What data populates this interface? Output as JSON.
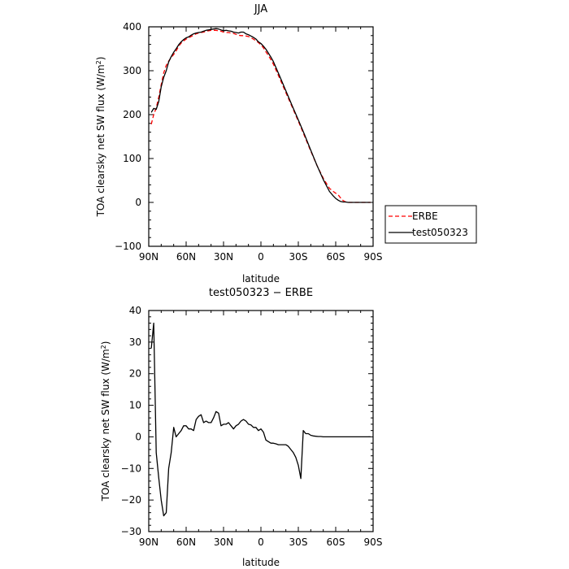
{
  "chart_data": [
    {
      "type": "line",
      "title": "JJA",
      "xlabel": "latitude",
      "ylabel": "TOA clearsky net SW flux (W/m²)",
      "xlim": [
        90,
        -90
      ],
      "ylim": [
        -100,
        400
      ],
      "x_ticks": [
        "90N",
        "60N",
        "30N",
        "0",
        "30S",
        "60S",
        "90S"
      ],
      "x_tick_values": [
        90,
        60,
        30,
        0,
        -30,
        -60,
        -90
      ],
      "y_ticks": [
        "−100",
        "0",
        "100",
        "200",
        "300",
        "400"
      ],
      "y_tick_values": [
        -100,
        0,
        100,
        200,
        300,
        400
      ],
      "legend": "right-bottom outside",
      "series": [
        {
          "name": "ERBE",
          "color": "#ff0000",
          "dashed": true,
          "x": [
            88,
            86,
            84,
            82,
            80,
            78,
            76,
            74,
            72,
            70,
            68,
            66,
            64,
            62,
            60,
            58,
            56,
            54,
            52,
            50,
            48,
            46,
            44,
            42,
            40,
            38,
            36,
            34,
            32,
            30,
            28,
            26,
            24,
            22,
            20,
            18,
            16,
            14,
            12,
            10,
            8,
            6,
            4,
            2,
            0,
            -2,
            -4,
            -6,
            -8,
            -10,
            -15,
            -20,
            -25,
            -30,
            -35,
            -40,
            -45,
            -50,
            -55,
            -58,
            -60,
            -62,
            -64,
            -66,
            -68,
            -70,
            -72,
            -74,
            -76,
            -78,
            -80,
            -85,
            -88
          ],
          "y": [
            178,
            200,
            215,
            240,
            268,
            295,
            312,
            322,
            330,
            337,
            345,
            356,
            363,
            368,
            372,
            375,
            378,
            381,
            384,
            386,
            387,
            388,
            390,
            391,
            392,
            392,
            392,
            391,
            390,
            388,
            387,
            387,
            386,
            385,
            383,
            381,
            380,
            380,
            379,
            378,
            375,
            372,
            368,
            364,
            359,
            352,
            343,
            335,
            325,
            315,
            283,
            250,
            218,
            185,
            151,
            117,
            84,
            55,
            32,
            25,
            21,
            17,
            10,
            4,
            1,
            0,
            0,
            0,
            0,
            0,
            0,
            0,
            0
          ]
        },
        {
          "name": "test050323",
          "color": "#000000",
          "dashed": false,
          "x": [
            88,
            86,
            84,
            82,
            80,
            78,
            76,
            74,
            72,
            70,
            68,
            66,
            64,
            62,
            60,
            58,
            56,
            54,
            52,
            50,
            48,
            46,
            44,
            42,
            40,
            38,
            36,
            34,
            32,
            30,
            28,
            26,
            24,
            22,
            20,
            18,
            16,
            14,
            12,
            10,
            8,
            6,
            4,
            2,
            0,
            -2,
            -4,
            -6,
            -8,
            -10,
            -15,
            -20,
            -25,
            -30,
            -35,
            -40,
            -45,
            -50,
            -55,
            -58,
            -60,
            -62,
            -64,
            -66,
            -68,
            -70,
            -72,
            -74,
            -76,
            -78,
            -80,
            -85,
            -88
          ],
          "y": [
            205,
            214,
            212,
            230,
            263,
            285,
            300,
            320,
            332,
            342,
            350,
            359,
            366,
            371,
            375,
            377,
            381,
            384,
            386,
            387,
            388,
            390,
            392,
            393,
            394,
            395,
            396,
            395,
            393,
            391,
            392,
            391,
            390,
            388,
            387,
            386,
            388,
            388,
            384,
            382,
            379,
            376,
            372,
            366,
            362,
            356,
            349,
            340,
            331,
            321,
            288,
            254,
            221,
            188,
            154,
            119,
            84,
            52,
            25,
            15,
            9,
            5,
            2,
            1,
            1,
            0,
            0,
            0,
            0,
            0,
            0,
            0,
            0
          ]
        }
      ]
    },
    {
      "type": "line",
      "title": "test050323 − ERBE",
      "xlabel": "latitude",
      "ylabel": "TOA clearsky net SW flux (W/m²)",
      "xlim": [
        90,
        -90
      ],
      "ylim": [
        -30,
        40
      ],
      "x_ticks": [
        "90N",
        "60N",
        "30N",
        "0",
        "30S",
        "60S",
        "90S"
      ],
      "x_tick_values": [
        90,
        60,
        30,
        0,
        -30,
        -60,
        -90
      ],
      "y_ticks": [
        "−30",
        "−20",
        "−10",
        "0",
        "10",
        "20",
        "30",
        "40"
      ],
      "y_tick_values": [
        -30,
        -20,
        -10,
        0,
        10,
        20,
        30,
        40
      ],
      "series": [
        {
          "name": "",
          "color": "#000000",
          "dashed": false,
          "x": [
            88,
            86,
            84,
            82,
            80,
            78,
            76,
            74,
            72,
            70,
            68,
            66,
            64,
            62,
            60,
            58,
            56,
            54,
            52,
            50,
            48,
            46,
            44,
            42,
            40,
            38,
            36,
            34,
            32,
            30,
            28,
            26,
            24,
            22,
            20,
            18,
            16,
            14,
            12,
            10,
            8,
            6,
            4,
            2,
            0,
            -2,
            -4,
            -6,
            -8,
            -10,
            -12,
            -14,
            -16,
            -18,
            -20,
            -22,
            -24,
            -26,
            -28,
            -30,
            -32,
            -34,
            -36,
            -38,
            -40,
            -42,
            -44,
            -46,
            -48,
            -50,
            -52,
            -54,
            -56,
            -58,
            -60,
            -62,
            -64,
            -66,
            -68,
            -70,
            -72,
            -74,
            -76,
            -78,
            -80,
            -82,
            -84,
            -86,
            -88
          ],
          "y": [
            28,
            36,
            -5,
            -13,
            -20,
            -25,
            -24,
            -10,
            -5,
            3,
            0,
            1,
            2,
            3.5,
            3.5,
            2.5,
            2.5,
            2,
            5.5,
            6.5,
            7,
            4.5,
            5,
            4.5,
            4.5,
            6,
            8,
            7.5,
            3.5,
            4,
            4,
            4.5,
            3.5,
            2.5,
            3.5,
            4,
            5,
            5.5,
            5,
            4,
            3.8,
            3,
            3,
            2,
            2.5,
            1.5,
            -1,
            -1.5,
            -2,
            -2,
            -2.2,
            -2.5,
            -2.5,
            -2.5,
            -2.5,
            -3,
            -4,
            -5,
            -6.5,
            -9,
            -13.2,
            2,
            1,
            1,
            0.5,
            0.3,
            0.2,
            0.1,
            0.1,
            0,
            0,
            0,
            0,
            0,
            0,
            0,
            0,
            0,
            0,
            0,
            0,
            0,
            0,
            0,
            0,
            0,
            0,
            0,
            0
          ]
        }
      ]
    }
  ]
}
